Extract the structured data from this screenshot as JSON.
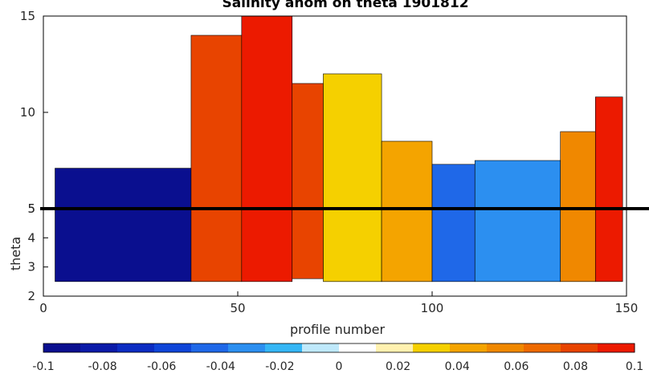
{
  "chart_data": {
    "type": "heatmap",
    "title": "Salinity anom on theta    1901812",
    "xlabel": "profile number",
    "ylabel": "theta",
    "panels": [
      {
        "name": "upper",
        "ylim": [
          5,
          15
        ],
        "xlim": [
          0,
          150
        ],
        "yticks": [
          "15",
          "10",
          "5"
        ],
        "grid": false
      },
      {
        "name": "lower",
        "ylim": [
          2,
          5
        ],
        "xlim": [
          0,
          150
        ],
        "yticks": [
          "5",
          "4",
          "3",
          "2"
        ],
        "xticks": [
          "0",
          "50",
          "100",
          "150"
        ],
        "grid": false
      }
    ],
    "columns": [
      {
        "x": [
          3,
          37
        ],
        "top": 7.1,
        "bottom": 2.5,
        "value": -0.09
      },
      {
        "x": [
          38,
          50
        ],
        "top": 14.0,
        "bottom": 2.5,
        "value": 0.08
      },
      {
        "x": [
          51,
          63
        ],
        "top": 15.0,
        "bottom": 2.5,
        "value": 0.1
      },
      {
        "x": [
          64,
          71
        ],
        "top": 11.5,
        "bottom": 2.6,
        "value": 0.08
      },
      {
        "x": [
          72,
          86
        ],
        "top": 12.0,
        "bottom": 2.5,
        "value": 0.03
      },
      {
        "x": [
          87,
          99
        ],
        "top": 8.5,
        "bottom": 2.5,
        "value": 0.04
      },
      {
        "x": [
          100,
          110
        ],
        "top": 7.3,
        "bottom": 2.5,
        "value": -0.05
      },
      {
        "x": [
          111,
          132
        ],
        "top": 7.5,
        "bottom": 2.5,
        "value": -0.03
      },
      {
        "x": [
          133,
          141
        ],
        "top": 9.0,
        "bottom": 2.5,
        "value": 0.05
      },
      {
        "x": [
          142,
          148
        ],
        "top": 10.8,
        "bottom": 2.5,
        "value": 0.09
      }
    ],
    "colorbar": {
      "range": [
        -0.1,
        0.1
      ],
      "ticks": [
        "-0.1",
        "-0.08",
        "-0.06",
        "-0.04",
        "-0.02",
        "0",
        "0.02",
        "0.04",
        "0.06",
        "0.08",
        "0.1"
      ],
      "colors": [
        "#0a0f8f",
        "#0a1aa8",
        "#0b2cc2",
        "#0f45d8",
        "#1f68e8",
        "#2c8ff0",
        "#35b6f5",
        "#bfe9fb",
        "#ffffff",
        "#fff1b0",
        "#f5d000",
        "#f4a400",
        "#f08800",
        "#ee6a00",
        "#e84400",
        "#ec1a00"
      ]
    }
  }
}
